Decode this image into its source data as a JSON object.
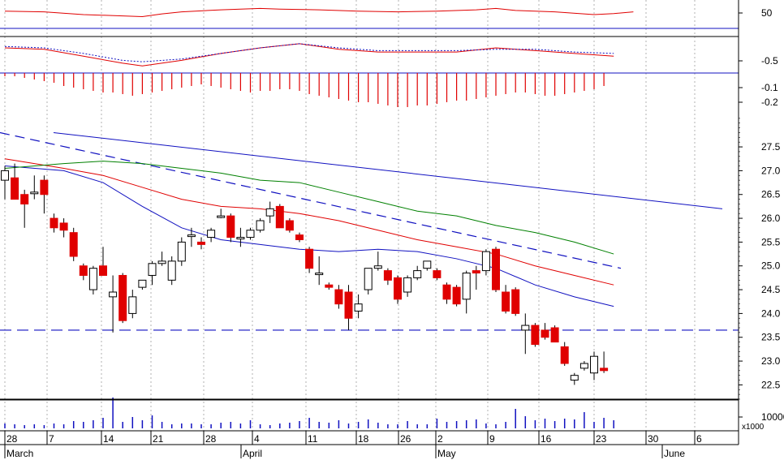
{
  "chart_data": {
    "type": "candlestick",
    "grid": true,
    "colors": {
      "up": "#ffffff",
      "down": "#e00000",
      "outline": "#000000",
      "ma_short": "#1010c0",
      "ma_mid": "#e00000",
      "ma_long": "#008000",
      "trend": "#1010c0",
      "support": "#1010c0",
      "indicator": "#e00000",
      "signal": "#1010c0",
      "volume": "#1010c0",
      "grid": "#b0b0b0",
      "frame": "#000000"
    },
    "price": {
      "ylim": [
        22.2,
        28.2
      ],
      "ticks": [
        "27.5",
        "27.0",
        "26.5",
        "26.0",
        "25.5",
        "25.0",
        "24.5",
        "24.0",
        "23.5",
        "23.0",
        "22.5"
      ],
      "support_level": 23.65,
      "trend_line": {
        "from": [
          "Mar 11",
          27.8
        ],
        "to": [
          "Jun 10",
          26.2
        ]
      },
      "dashed_trend": {
        "from": [
          "Feb 28",
          27.8
        ],
        "to": [
          "May 27",
          24.95
        ]
      },
      "candles": [
        {
          "date": "Feb 28",
          "o": 26.8,
          "h": 27.1,
          "l": 26.4,
          "c": 27.0
        },
        {
          "date": "Mar 1",
          "o": 26.85,
          "h": 27.15,
          "l": 26.4,
          "c": 26.4
        },
        {
          "date": "Mar 2",
          "o": 26.5,
          "h": 26.6,
          "l": 25.8,
          "c": 26.3
        },
        {
          "date": "Mar 3",
          "o": 26.55,
          "h": 26.9,
          "l": 26.4,
          "c": 26.55
        },
        {
          "date": "Mar 4",
          "o": 26.8,
          "h": 26.9,
          "l": 26.1,
          "c": 26.5
        },
        {
          "date": "Mar 7",
          "o": 26.0,
          "h": 26.1,
          "l": 25.7,
          "c": 25.8
        },
        {
          "date": "Mar 8",
          "o": 25.9,
          "h": 26.0,
          "l": 25.6,
          "c": 25.75
        },
        {
          "date": "Mar 9",
          "o": 25.7,
          "h": 25.8,
          "l": 25.1,
          "c": 25.2
        },
        {
          "date": "Mar 10",
          "o": 25.0,
          "h": 25.05,
          "l": 24.7,
          "c": 24.8
        },
        {
          "date": "Mar 11",
          "o": 24.5,
          "h": 25.0,
          "l": 24.4,
          "c": 24.95
        },
        {
          "date": "Mar 14",
          "o": 25.0,
          "h": 25.4,
          "l": 24.8,
          "c": 24.8
        },
        {
          "date": "Mar 15",
          "o": 24.35,
          "h": 24.8,
          "l": 23.6,
          "c": 24.45
        },
        {
          "date": "Mar 16",
          "o": 24.8,
          "h": 24.85,
          "l": 23.8,
          "c": 23.85
        },
        {
          "date": "Mar 17",
          "o": 24.0,
          "h": 24.5,
          "l": 23.9,
          "c": 24.35
        },
        {
          "date": "Mar 18",
          "o": 24.55,
          "h": 24.7,
          "l": 24.5,
          "c": 24.7
        },
        {
          "date": "Mar 21",
          "o": 24.8,
          "h": 25.1,
          "l": 24.6,
          "c": 25.05
        },
        {
          "date": "Mar 22",
          "o": 25.05,
          "h": 25.3,
          "l": 25.0,
          "c": 25.1
        },
        {
          "date": "Mar 23",
          "o": 24.7,
          "h": 25.2,
          "l": 24.6,
          "c": 25.1
        },
        {
          "date": "Mar 24",
          "o": 25.1,
          "h": 25.6,
          "l": 25.0,
          "c": 25.5
        },
        {
          "date": "Mar 25",
          "o": 25.65,
          "h": 25.8,
          "l": 25.4,
          "c": 25.65
        },
        {
          "date": "Mar 28",
          "o": 25.5,
          "h": 25.6,
          "l": 25.35,
          "c": 25.45
        },
        {
          "date": "Mar 29",
          "o": 25.6,
          "h": 25.8,
          "l": 25.5,
          "c": 25.75
        },
        {
          "date": "Mar 30",
          "o": 26.05,
          "h": 26.2,
          "l": 26.0,
          "c": 26.05
        },
        {
          "date": "Mar 31",
          "o": 26.05,
          "h": 26.1,
          "l": 25.5,
          "c": 25.6
        },
        {
          "date": "Apr 1",
          "o": 25.6,
          "h": 25.8,
          "l": 25.4,
          "c": 25.6
        },
        {
          "date": "Apr 4",
          "o": 25.6,
          "h": 25.8,
          "l": 25.55,
          "c": 25.75
        },
        {
          "date": "Apr 5",
          "o": 25.75,
          "h": 26.0,
          "l": 25.7,
          "c": 25.95
        },
        {
          "date": "Apr 6",
          "o": 26.05,
          "h": 26.35,
          "l": 25.9,
          "c": 26.2
        },
        {
          "date": "Apr 7",
          "o": 26.25,
          "h": 26.3,
          "l": 25.8,
          "c": 25.8
        },
        {
          "date": "Apr 8",
          "o": 25.95,
          "h": 26.0,
          "l": 25.7,
          "c": 25.75
        },
        {
          "date": "Apr 11",
          "o": 25.65,
          "h": 25.7,
          "l": 25.5,
          "c": 25.55
        },
        {
          "date": "Apr 12",
          "o": 25.35,
          "h": 25.4,
          "l": 24.85,
          "c": 24.95
        },
        {
          "date": "Apr 13",
          "o": 24.85,
          "h": 25.2,
          "l": 24.6,
          "c": 24.85
        },
        {
          "date": "Apr 14",
          "o": 24.6,
          "h": 24.65,
          "l": 24.5,
          "c": 24.55
        },
        {
          "date": "Apr 15",
          "o": 24.5,
          "h": 24.6,
          "l": 24.1,
          "c": 24.2
        },
        {
          "date": "Apr 18",
          "o": 24.45,
          "h": 24.6,
          "l": 23.65,
          "c": 23.9
        },
        {
          "date": "Apr 19",
          "o": 24.05,
          "h": 24.4,
          "l": 23.9,
          "c": 24.2
        },
        {
          "date": "Apr 20",
          "o": 24.5,
          "h": 24.95,
          "l": 24.4,
          "c": 24.95
        },
        {
          "date": "Apr 21",
          "o": 24.95,
          "h": 25.3,
          "l": 24.9,
          "c": 25.0
        },
        {
          "date": "Apr 22",
          "o": 24.9,
          "h": 24.95,
          "l": 24.6,
          "c": 24.7
        },
        {
          "date": "Apr 25",
          "o": 24.75,
          "h": 24.8,
          "l": 24.2,
          "c": 24.3
        },
        {
          "date": "Apr 26",
          "o": 24.45,
          "h": 24.8,
          "l": 24.35,
          "c": 24.75
        },
        {
          "date": "Apr 27",
          "o": 24.75,
          "h": 25.0,
          "l": 24.7,
          "c": 24.9
        },
        {
          "date": "May 2",
          "o": 24.95,
          "h": 25.1,
          "l": 24.9,
          "c": 25.1
        },
        {
          "date": "May 3",
          "o": 24.9,
          "h": 24.95,
          "l": 24.7,
          "c": 24.75
        },
        {
          "date": "May 4",
          "o": 24.6,
          "h": 24.65,
          "l": 24.2,
          "c": 24.3
        },
        {
          "date": "May 5",
          "o": 24.55,
          "h": 24.6,
          "l": 24.15,
          "c": 24.2
        },
        {
          "date": "May 6",
          "o": 24.3,
          "h": 24.9,
          "l": 24.0,
          "c": 24.85
        },
        {
          "date": "May 9",
          "o": 24.9,
          "h": 25.0,
          "l": 24.5,
          "c": 24.85
        },
        {
          "date": "May 10",
          "o": 24.9,
          "h": 25.35,
          "l": 24.8,
          "c": 25.3
        },
        {
          "date": "May 11",
          "o": 25.35,
          "h": 25.4,
          "l": 24.45,
          "c": 24.5
        },
        {
          "date": "May 12",
          "o": 24.45,
          "h": 24.6,
          "l": 24.0,
          "c": 24.05
        },
        {
          "date": "May 13",
          "o": 24.5,
          "h": 24.55,
          "l": 23.95,
          "c": 24.0
        },
        {
          "date": "May 16",
          "o": 23.65,
          "h": 24.0,
          "l": 23.15,
          "c": 23.75
        },
        {
          "date": "May 17",
          "o": 23.75,
          "h": 23.8,
          "l": 23.3,
          "c": 23.35
        },
        {
          "date": "May 18",
          "o": 23.65,
          "h": 23.8,
          "l": 23.45,
          "c": 23.5
        },
        {
          "date": "May 19",
          "o": 23.7,
          "h": 23.75,
          "l": 23.4,
          "c": 23.4
        },
        {
          "date": "May 20",
          "o": 23.3,
          "h": 23.4,
          "l": 22.9,
          "c": 22.95
        },
        {
          "date": "May 23",
          "o": 22.6,
          "h": 22.75,
          "l": 22.5,
          "c": 22.7
        },
        {
          "date": "May 24",
          "o": 22.85,
          "h": 23.0,
          "l": 22.8,
          "c": 22.95
        },
        {
          "date": "May 25",
          "o": 22.75,
          "h": 23.2,
          "l": 22.6,
          "c": 23.1
        },
        {
          "date": "May 26",
          "o": 22.85,
          "h": 23.2,
          "l": 22.75,
          "c": 22.8
        }
      ],
      "moving_averages": [
        {
          "name": "short",
          "color_key": "ma_short",
          "dashed": false,
          "values": [
            [
              0,
              27.1
            ],
            [
              6,
              27.0
            ],
            [
              10,
              26.75
            ],
            [
              14,
              26.25
            ],
            [
              18,
              25.8
            ],
            [
              22,
              25.55
            ],
            [
              26,
              25.45
            ],
            [
              30,
              25.35
            ],
            [
              34,
              25.3
            ],
            [
              38,
              25.35
            ],
            [
              42,
              25.3
            ],
            [
              46,
              25.15
            ],
            [
              50,
              24.95
            ],
            [
              54,
              24.6
            ],
            [
              58,
              24.35
            ],
            [
              62,
              24.15
            ]
          ]
        },
        {
          "name": "mid",
          "color_key": "ma_mid",
          "dashed": false,
          "values": [
            [
              0,
              27.25
            ],
            [
              6,
              27.05
            ],
            [
              10,
              26.9
            ],
            [
              14,
              26.65
            ],
            [
              18,
              26.4
            ],
            [
              22,
              26.25
            ],
            [
              26,
              26.2
            ],
            [
              30,
              26.1
            ],
            [
              34,
              25.95
            ],
            [
              38,
              25.75
            ],
            [
              42,
              25.55
            ],
            [
              46,
              25.4
            ],
            [
              50,
              25.25
            ],
            [
              54,
              25.0
            ],
            [
              58,
              24.8
            ],
            [
              62,
              24.6
            ]
          ]
        },
        {
          "name": "long",
          "color_key": "ma_long",
          "dashed": false,
          "values": [
            [
              0,
              27.05
            ],
            [
              6,
              27.15
            ],
            [
              10,
              27.2
            ],
            [
              14,
              27.15
            ],
            [
              18,
              27.05
            ],
            [
              22,
              26.95
            ],
            [
              26,
              26.8
            ],
            [
              30,
              26.75
            ],
            [
              34,
              26.55
            ],
            [
              38,
              26.35
            ],
            [
              42,
              26.15
            ],
            [
              46,
              26.05
            ],
            [
              50,
              25.85
            ],
            [
              54,
              25.7
            ],
            [
              58,
              25.5
            ],
            [
              62,
              25.25
            ]
          ]
        }
      ]
    },
    "oscillator1": {
      "ticks": [
        "50"
      ],
      "ylim": [
        0,
        100
      ],
      "level_line": 45,
      "values": [
        [
          0,
          72
        ],
        [
          4,
          70
        ],
        [
          8,
          62
        ],
        [
          12,
          58
        ],
        [
          14,
          56
        ],
        [
          16,
          64
        ],
        [
          18,
          70
        ],
        [
          22,
          76
        ],
        [
          26,
          80
        ],
        [
          28,
          78
        ],
        [
          32,
          76
        ],
        [
          36,
          72
        ],
        [
          40,
          70
        ],
        [
          44,
          72
        ],
        [
          48,
          76
        ],
        [
          50,
          80
        ],
        [
          52,
          74
        ],
        [
          56,
          70
        ],
        [
          60,
          62
        ],
        [
          62,
          65
        ],
        [
          64,
          70
        ]
      ]
    },
    "oscillator2": {
      "ticks": [
        "-0.5"
      ],
      "ylim": [
        -1.2,
        0.2
      ],
      "line": [
        [
          0,
          -0.15
        ],
        [
          4,
          -0.2
        ],
        [
          8,
          -0.45
        ],
        [
          12,
          -0.7
        ],
        [
          14,
          -0.8
        ],
        [
          18,
          -0.6
        ],
        [
          22,
          -0.35
        ],
        [
          26,
          -0.15
        ],
        [
          30,
          0.0
        ],
        [
          34,
          -0.2
        ],
        [
          38,
          -0.3
        ],
        [
          42,
          -0.3
        ],
        [
          46,
          -0.3
        ],
        [
          50,
          -0.15
        ],
        [
          54,
          -0.25
        ],
        [
          58,
          -0.35
        ],
        [
          62,
          -0.45
        ]
      ],
      "signal": [
        [
          0,
          -0.1
        ],
        [
          4,
          -0.15
        ],
        [
          8,
          -0.35
        ],
        [
          12,
          -0.6
        ],
        [
          14,
          -0.65
        ],
        [
          18,
          -0.55
        ],
        [
          22,
          -0.35
        ],
        [
          26,
          -0.15
        ],
        [
          30,
          0.0
        ],
        [
          34,
          -0.15
        ],
        [
          38,
          -0.25
        ],
        [
          42,
          -0.25
        ],
        [
          46,
          -0.25
        ],
        [
          50,
          -0.2
        ],
        [
          54,
          -0.2
        ],
        [
          58,
          -0.3
        ],
        [
          62,
          -0.35
        ]
      ]
    },
    "histogram": {
      "ticks": [
        "-0.1",
        "-0.2"
      ],
      "ylim": [
        -0.25,
        0.0
      ],
      "values": [
        -0.02,
        -0.02,
        -0.03,
        -0.04,
        -0.05,
        -0.06,
        -0.08,
        -0.09,
        -0.1,
        -0.11,
        -0.12,
        -0.12,
        -0.13,
        -0.14,
        -0.13,
        -0.12,
        -0.11,
        -0.1,
        -0.09,
        -0.08,
        -0.07,
        -0.08,
        -0.09,
        -0.1,
        -0.11,
        -0.12,
        -0.11,
        -0.11,
        -0.1,
        -0.1,
        -0.11,
        -0.13,
        -0.14,
        -0.15,
        -0.16,
        -0.17,
        -0.18,
        -0.18,
        -0.19,
        -0.2,
        -0.21,
        -0.21,
        -0.2,
        -0.2,
        -0.19,
        -0.18,
        -0.17,
        -0.17,
        -0.16,
        -0.15,
        -0.14,
        -0.13,
        -0.12,
        -0.12,
        -0.13,
        -0.14,
        -0.14,
        -0.13,
        -0.12,
        -0.11,
        -0.1,
        -0.08
      ]
    },
    "volume": {
      "ticks": [
        "10000"
      ],
      "unit": "x1000",
      "values": [
        6,
        5,
        4,
        5,
        4,
        6,
        5,
        9,
        8,
        10,
        13,
        38,
        8,
        14,
        10,
        16,
        8,
        5,
        6,
        6,
        5,
        5,
        7,
        8,
        6,
        10,
        5,
        4,
        6,
        7,
        9,
        13,
        8,
        7,
        10,
        6,
        8,
        11,
        7,
        5,
        5,
        9,
        5,
        5,
        12,
        8,
        9,
        10,
        11,
        6,
        5,
        8,
        24,
        15,
        10,
        12,
        9,
        12,
        11,
        20,
        8,
        13,
        10
      ]
    },
    "x_axis": {
      "day_ticks": [
        "28",
        "7",
        "14",
        "21",
        "28",
        "4",
        "11",
        "18",
        "26",
        "2",
        "9",
        "16",
        "23",
        "30",
        "6"
      ],
      "month_labels": [
        "March",
        "April",
        "May",
        "June"
      ]
    }
  }
}
